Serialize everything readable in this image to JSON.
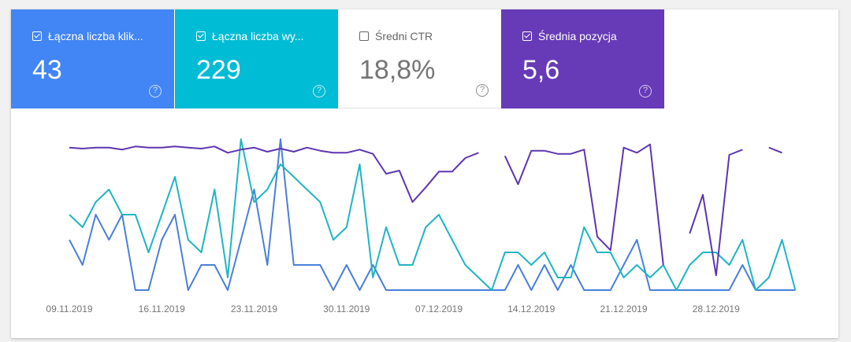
{
  "cards": [
    {
      "label": "Łączna liczba klik...",
      "value": "43",
      "checked": true,
      "color": "#4285f4"
    },
    {
      "label": "Łączna liczba wy...",
      "value": "229",
      "checked": true,
      "color": "#00bcd4"
    },
    {
      "label": "Średni CTR",
      "value": "18,8%",
      "checked": false,
      "color": "#ffffff"
    },
    {
      "label": "Średnia pozycja",
      "value": "5,6",
      "checked": true,
      "color": "#673ab7"
    }
  ],
  "help_icon": "question-circle-icon",
  "chart_data": {
    "type": "line",
    "x_tick_labels": [
      "09.11.2019",
      "16.11.2019",
      "23.11.2019",
      "30.11.2019",
      "07.12.2019",
      "14.12.2019",
      "21.12.2019",
      "28.12.2019"
    ],
    "x": [
      "09.11.2019",
      "10.11.2019",
      "11.11.2019",
      "12.11.2019",
      "13.11.2019",
      "14.11.2019",
      "15.11.2019",
      "16.11.2019",
      "17.11.2019",
      "18.11.2019",
      "19.11.2019",
      "20.11.2019",
      "21.11.2019",
      "22.11.2019",
      "23.11.2019",
      "24.11.2019",
      "25.11.2019",
      "26.11.2019",
      "27.11.2019",
      "28.11.2019",
      "29.11.2019",
      "30.11.2019",
      "01.12.2019",
      "02.12.2019",
      "03.12.2019",
      "04.12.2019",
      "05.12.2019",
      "06.12.2019",
      "07.12.2019",
      "08.12.2019",
      "09.12.2019",
      "10.12.2019",
      "11.12.2019",
      "12.12.2019",
      "13.12.2019",
      "14.12.2019",
      "15.12.2019",
      "16.12.2019",
      "17.12.2019",
      "18.12.2019",
      "19.12.2019",
      "20.12.2019",
      "21.12.2019",
      "22.12.2019",
      "23.12.2019",
      "24.12.2019",
      "25.12.2019",
      "26.12.2019",
      "27.12.2019",
      "28.12.2019",
      "29.12.2019",
      "30.12.2019",
      "31.12.2019",
      "01.01.2020",
      "02.01.2020",
      "03.01.2020"
    ],
    "grid": false,
    "series": [
      {
        "key": "clicks",
        "color": "#4a7fd9",
        "ylim": [
          0,
          6
        ],
        "inverted": false,
        "values": [
          2,
          1,
          3,
          2,
          3,
          0,
          0,
          2,
          3,
          0,
          1,
          1,
          0,
          2,
          4,
          1,
          6,
          1,
          1,
          1,
          0,
          1,
          0,
          1,
          0,
          0,
          0,
          0,
          0,
          0,
          0,
          0,
          0,
          0,
          1,
          0,
          1,
          0,
          1,
          0,
          0,
          0,
          1,
          2,
          0,
          0,
          0,
          0,
          0,
          0,
          0,
          1,
          0,
          0,
          0,
          0
        ]
      },
      {
        "key": "impressions",
        "color": "#1fb5c4",
        "ylim": [
          0,
          12
        ],
        "inverted": false,
        "values": [
          6,
          5,
          7,
          8,
          6,
          6,
          3,
          6,
          9,
          4,
          3,
          8,
          1,
          12,
          7,
          8,
          10,
          9,
          8,
          7,
          4,
          5,
          10,
          1,
          5,
          2,
          2,
          5,
          6,
          4,
          2,
          1,
          0,
          3,
          3,
          2,
          3,
          1,
          1,
          5,
          3,
          3,
          1,
          2,
          1,
          2,
          0,
          2,
          3,
          3,
          2,
          4,
          0,
          1,
          4,
          0
        ]
      },
      {
        "key": "position",
        "color": "#5e35b1",
        "ylim": [
          1,
          15.4
        ],
        "inverted": true,
        "values": [
          1.8,
          1.9,
          1.8,
          1.8,
          2.0,
          1.7,
          1.8,
          1.8,
          1.7,
          1.8,
          1.9,
          1.7,
          2.3,
          2.0,
          1.8,
          2.2,
          1.9,
          2.2,
          1.8,
          2.1,
          2.3,
          2.3,
          2.0,
          2.4,
          4.3,
          4.0,
          7.0,
          5.6,
          4.1,
          4.1,
          2.8,
          2.3,
          null,
          2.6,
          5.3,
          2.1,
          2.1,
          2.4,
          2.4,
          2.0,
          10.3,
          11.6,
          1.8,
          2.3,
          1.5,
          13.0,
          null,
          10.0,
          6.3,
          14.0,
          2.5,
          2.0,
          null,
          1.8,
          2.3,
          null
        ]
      }
    ]
  }
}
